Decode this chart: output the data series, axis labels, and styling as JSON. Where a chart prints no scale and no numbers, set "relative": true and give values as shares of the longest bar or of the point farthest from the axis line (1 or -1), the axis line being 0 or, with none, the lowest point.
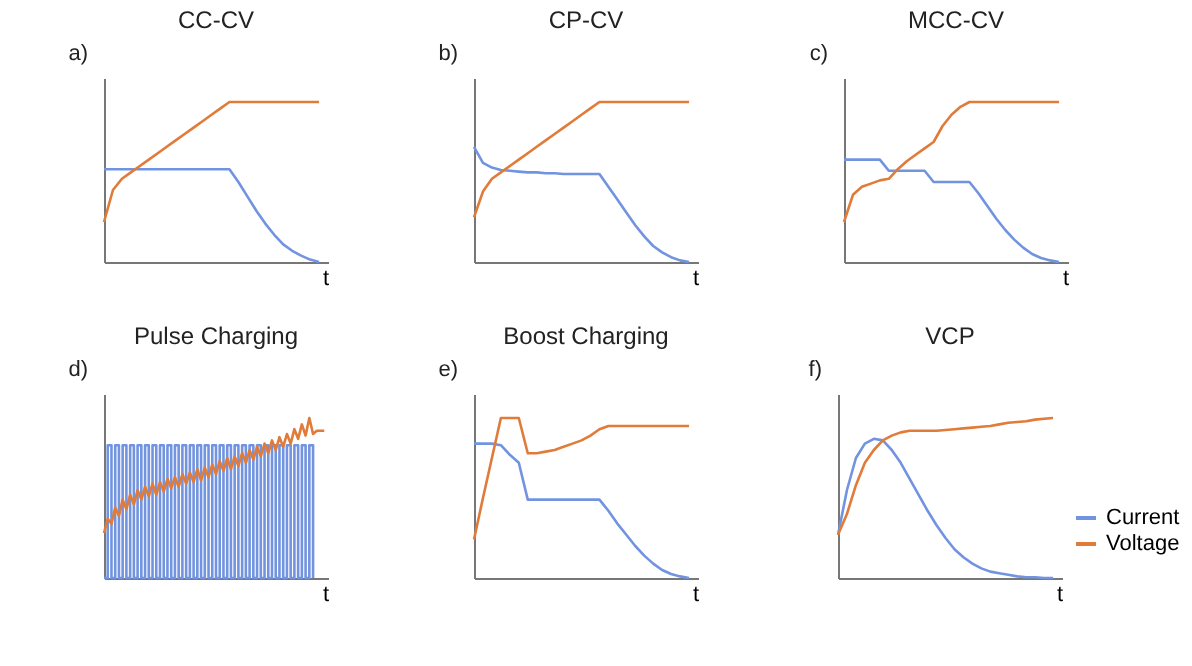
{
  "chart_data": [
    {
      "type": "line",
      "title": "CC-CV",
      "xlabel": "t",
      "annotations": [
        "a)"
      ],
      "relative": true,
      "categories": [
        null,
        null,
        null,
        null,
        null,
        null,
        null,
        null,
        null,
        null,
        null,
        null,
        null,
        null,
        null,
        null,
        null,
        null,
        null,
        null,
        null,
        null,
        null,
        null,
        null
      ],
      "series": [
        {
          "color": "#7294e0",
          "values": [
            0.58,
            0.58,
            0.58,
            0.58,
            0.58,
            0.58,
            0.58,
            0.58,
            0.58,
            0.58,
            0.58,
            0.58,
            0.58,
            0.58,
            0.58,
            0.5,
            0.41,
            0.32,
            0.24,
            0.17,
            0.11,
            0.07,
            0.04,
            0.015,
            0
          ]
        },
        {
          "color": "#e07b39",
          "values": [
            0.25,
            0.45,
            0.52,
            0.56,
            0.6,
            0.64,
            0.68,
            0.72,
            0.76,
            0.8,
            0.84,
            0.88,
            0.92,
            0.96,
            1,
            1,
            1,
            1,
            1,
            1,
            1,
            1,
            1,
            1,
            1
          ]
        }
      ]
    },
    {
      "type": "line",
      "title": "CP-CV",
      "xlabel": "t",
      "annotations": [
        "b)"
      ],
      "relative": true,
      "categories": [
        null,
        null,
        null,
        null,
        null,
        null,
        null,
        null,
        null,
        null,
        null,
        null,
        null,
        null,
        null,
        null,
        null,
        null,
        null,
        null,
        null,
        null,
        null,
        null,
        null
      ],
      "series": [
        {
          "color": "#7294e0",
          "values": [
            0.72,
            0.62,
            0.59,
            0.575,
            0.57,
            0.565,
            0.56,
            0.56,
            0.555,
            0.555,
            0.55,
            0.55,
            0.55,
            0.55,
            0.55,
            0.47,
            0.39,
            0.31,
            0.23,
            0.16,
            0.1,
            0.06,
            0.03,
            0.01,
            0
          ]
        },
        {
          "color": "#e07b39",
          "values": [
            0.28,
            0.44,
            0.52,
            0.56,
            0.6,
            0.64,
            0.68,
            0.72,
            0.76,
            0.8,
            0.84,
            0.88,
            0.92,
            0.96,
            1,
            1,
            1,
            1,
            1,
            1,
            1,
            1,
            1,
            1,
            1
          ]
        }
      ]
    },
    {
      "type": "line",
      "title": "MCC-CV",
      "xlabel": "t",
      "annotations": [
        "c)"
      ],
      "relative": true,
      "categories": [
        null,
        null,
        null,
        null,
        null,
        null,
        null,
        null,
        null,
        null,
        null,
        null,
        null,
        null,
        null,
        null,
        null,
        null,
        null,
        null,
        null,
        null,
        null,
        null,
        null
      ],
      "series": [
        {
          "color": "#7294e0",
          "values": [
            0.64,
            0.64,
            0.64,
            0.64,
            0.64,
            0.57,
            0.57,
            0.57,
            0.57,
            0.57,
            0.5,
            0.5,
            0.5,
            0.5,
            0.5,
            0.43,
            0.35,
            0.27,
            0.2,
            0.14,
            0.09,
            0.05,
            0.025,
            0.01,
            0
          ]
        },
        {
          "color": "#e07b39",
          "values": [
            0.25,
            0.42,
            0.47,
            0.49,
            0.51,
            0.52,
            0.58,
            0.63,
            0.67,
            0.71,
            0.75,
            0.85,
            0.92,
            0.97,
            1,
            1,
            1,
            1,
            1,
            1,
            1,
            1,
            1,
            1,
            1
          ]
        }
      ]
    },
    {
      "type": "line",
      "title": "Pulse Charging",
      "xlabel": "t",
      "annotations": [
        "d)"
      ],
      "relative": true,
      "categories": [
        null,
        null,
        null,
        null,
        null,
        null,
        null,
        null,
        null,
        null,
        null,
        null,
        null,
        null,
        null,
        null,
        null,
        null,
        null,
        null,
        null,
        null,
        null,
        null,
        null,
        null,
        null,
        null,
        null,
        null,
        null,
        null,
        null,
        null,
        null,
        null,
        null,
        null,
        null,
        null,
        null,
        null,
        null,
        null,
        null,
        null,
        null,
        null,
        null,
        null,
        null,
        null,
        null,
        null,
        null,
        null,
        null,
        null,
        null,
        null
      ],
      "series": [
        {
          "type": "step",
          "color": "#7294e0",
          "values": [
            0,
            0.83,
            0,
            0.83,
            0,
            0.83,
            0,
            0.83,
            0,
            0.83,
            0,
            0.83,
            0,
            0.83,
            0,
            0.83,
            0,
            0.83,
            0,
            0.83,
            0,
            0.83,
            0,
            0.83,
            0,
            0.83,
            0,
            0.83,
            0,
            0.83,
            0,
            0.83,
            0,
            0.83,
            0,
            0.83,
            0,
            0.83,
            0,
            0.83,
            0,
            0.83,
            0,
            0.83,
            0,
            0.83,
            0,
            0.83,
            0,
            0.83,
            0,
            0.83,
            0,
            0.83,
            0,
            0.83,
            0,
            null,
            null,
            null
          ]
        },
        {
          "color": "#e07b39",
          "values": [
            0.28,
            0.37,
            0.34,
            0.44,
            0.39,
            0.49,
            0.43,
            0.52,
            0.46,
            0.55,
            0.49,
            0.57,
            0.51,
            0.59,
            0.52,
            0.6,
            0.54,
            0.62,
            0.56,
            0.63,
            0.57,
            0.65,
            0.59,
            0.66,
            0.6,
            0.68,
            0.61,
            0.69,
            0.63,
            0.71,
            0.65,
            0.73,
            0.67,
            0.75,
            0.68,
            0.76,
            0.7,
            0.78,
            0.72,
            0.8,
            0.74,
            0.82,
            0.76,
            0.84,
            0.78,
            0.86,
            0.8,
            0.88,
            0.82,
            0.9,
            0.84,
            0.93,
            0.87,
            0.96,
            0.89,
            1,
            0.9,
            0.92,
            0.92,
            0.92
          ]
        }
      ]
    },
    {
      "type": "line",
      "title": "Boost Charging",
      "xlabel": "t",
      "annotations": [
        "e)"
      ],
      "relative": true,
      "categories": [
        null,
        null,
        null,
        null,
        null,
        null,
        null,
        null,
        null,
        null,
        null,
        null,
        null,
        null,
        null,
        null,
        null,
        null,
        null,
        null,
        null,
        null,
        null,
        null,
        null
      ],
      "series": [
        {
          "color": "#7294e0",
          "values": [
            0.84,
            0.84,
            0.84,
            0.83,
            0.77,
            0.72,
            0.49,
            0.49,
            0.49,
            0.49,
            0.49,
            0.49,
            0.49,
            0.49,
            0.49,
            0.42,
            0.34,
            0.27,
            0.2,
            0.14,
            0.09,
            0.05,
            0.025,
            0.01,
            0
          ]
        },
        {
          "color": "#e07b39",
          "values": [
            0.24,
            0.5,
            0.75,
            1,
            1,
            1,
            0.78,
            0.78,
            0.79,
            0.8,
            0.82,
            0.84,
            0.86,
            0.89,
            0.93,
            0.95,
            0.95,
            0.95,
            0.95,
            0.95,
            0.95,
            0.95,
            0.95,
            0.95,
            0.95
          ]
        }
      ]
    },
    {
      "type": "line",
      "title": "VCP",
      "xlabel": "t",
      "annotations": [
        "f)"
      ],
      "relative": true,
      "legend": "bottom right",
      "categories": [
        null,
        null,
        null,
        null,
        null,
        null,
        null,
        null,
        null,
        null,
        null,
        null,
        null,
        null,
        null,
        null,
        null,
        null,
        null,
        null,
        null,
        null,
        null,
        null,
        null
      ],
      "series": [
        {
          "name": "Current",
          "color": "#7294e0",
          "values": [
            0.27,
            0.55,
            0.75,
            0.84,
            0.87,
            0.86,
            0.8,
            0.72,
            0.62,
            0.52,
            0.42,
            0.33,
            0.25,
            0.18,
            0.13,
            0.09,
            0.06,
            0.04,
            0.03,
            0.02,
            0.01,
            0.005,
            0.005,
            0,
            0
          ]
        },
        {
          "name": "Voltage",
          "color": "#e07b39",
          "values": [
            0.27,
            0.4,
            0.58,
            0.72,
            0.8,
            0.86,
            0.89,
            0.91,
            0.92,
            0.92,
            0.92,
            0.92,
            0.925,
            0.93,
            0.935,
            0.94,
            0.945,
            0.95,
            0.96,
            0.97,
            0.975,
            0.98,
            0.99,
            0.995,
            1
          ]
        }
      ]
    }
  ]
}
